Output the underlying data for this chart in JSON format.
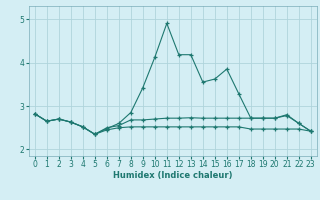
{
  "xlabel": "Humidex (Indice chaleur)",
  "background_color": "#d4eef4",
  "grid_color": "#afd4dc",
  "line_color": "#1e7870",
  "xlim": [
    -0.5,
    23.5
  ],
  "ylim": [
    1.85,
    5.3
  ],
  "xticks": [
    0,
    1,
    2,
    3,
    4,
    5,
    6,
    7,
    8,
    9,
    10,
    11,
    12,
    13,
    14,
    15,
    16,
    17,
    18,
    19,
    20,
    21,
    22,
    23
  ],
  "yticks": [
    2,
    3,
    4,
    5
  ],
  "line1_x": [
    0,
    1,
    2,
    3,
    4,
    5,
    6,
    7,
    8,
    9,
    10,
    11,
    12,
    13,
    14,
    15,
    16,
    17,
    18,
    19,
    20,
    21,
    22,
    23
  ],
  "line1_y": [
    2.82,
    2.65,
    2.7,
    2.63,
    2.52,
    2.35,
    2.48,
    2.6,
    2.85,
    3.42,
    4.12,
    4.9,
    4.18,
    4.18,
    3.55,
    3.62,
    3.85,
    3.28,
    2.72,
    2.72,
    2.72,
    2.8,
    2.6,
    2.42
  ],
  "line2_x": [
    0,
    1,
    2,
    3,
    4,
    5,
    6,
    7,
    8,
    9,
    10,
    11,
    12,
    13,
    14,
    15,
    16,
    17,
    18,
    19,
    20,
    21,
    22,
    23
  ],
  "line2_y": [
    2.82,
    2.65,
    2.7,
    2.63,
    2.52,
    2.35,
    2.5,
    2.55,
    2.68,
    2.68,
    2.7,
    2.72,
    2.72,
    2.73,
    2.72,
    2.72,
    2.72,
    2.72,
    2.72,
    2.72,
    2.72,
    2.78,
    2.6,
    2.42
  ],
  "line3_x": [
    0,
    1,
    2,
    3,
    4,
    5,
    6,
    7,
    8,
    9,
    10,
    11,
    12,
    13,
    14,
    15,
    16,
    17,
    18,
    19,
    20,
    21,
    22,
    23
  ],
  "line3_y": [
    2.82,
    2.65,
    2.7,
    2.63,
    2.52,
    2.35,
    2.45,
    2.5,
    2.52,
    2.52,
    2.52,
    2.52,
    2.52,
    2.52,
    2.52,
    2.52,
    2.52,
    2.52,
    2.47,
    2.47,
    2.47,
    2.47,
    2.47,
    2.42
  ]
}
